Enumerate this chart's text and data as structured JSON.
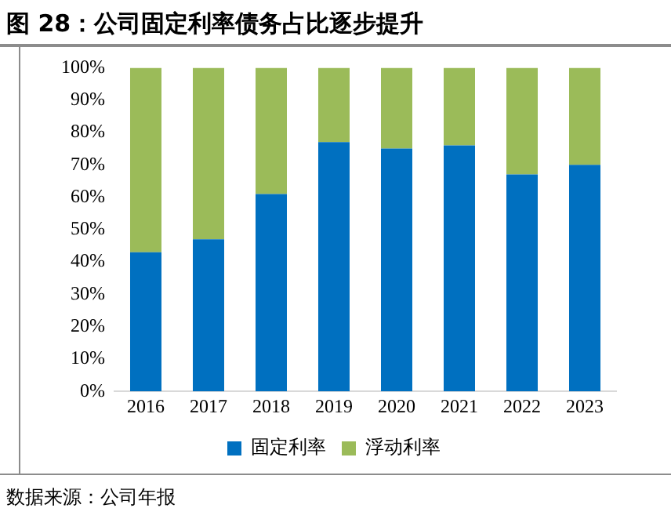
{
  "chart_data": {
    "type": "bar",
    "title": "图 28：公司固定利率债务占比逐步提升",
    "categories": [
      "2016",
      "2017",
      "2018",
      "2019",
      "2020",
      "2021",
      "2022",
      "2023"
    ],
    "series": [
      {
        "name": "固定利率",
        "color": "#0070c0",
        "values": [
          43,
          47,
          61,
          77,
          75,
          76,
          67,
          70
        ]
      },
      {
        "name": "浮动利率",
        "color": "#9bbb59",
        "values": [
          57,
          53,
          39,
          23,
          25,
          24,
          33,
          30
        ]
      }
    ],
    "stacked": true,
    "ylim": [
      0,
      100
    ],
    "yticks": [
      {
        "value": 0,
        "label": "0%"
      },
      {
        "value": 10,
        "label": "10%"
      },
      {
        "value": 20,
        "label": "20%"
      },
      {
        "value": 30,
        "label": "30%"
      },
      {
        "value": 40,
        "label": "40%"
      },
      {
        "value": 50,
        "label": "50%"
      },
      {
        "value": 60,
        "label": "60%"
      },
      {
        "value": 70,
        "label": "70%"
      },
      {
        "value": 80,
        "label": "80%"
      },
      {
        "value": 90,
        "label": "90%"
      },
      {
        "value": 100,
        "label": "100%"
      }
    ],
    "grid": false,
    "legend": "bottom",
    "annotations": [
      "数据来源：公司年报"
    ]
  }
}
